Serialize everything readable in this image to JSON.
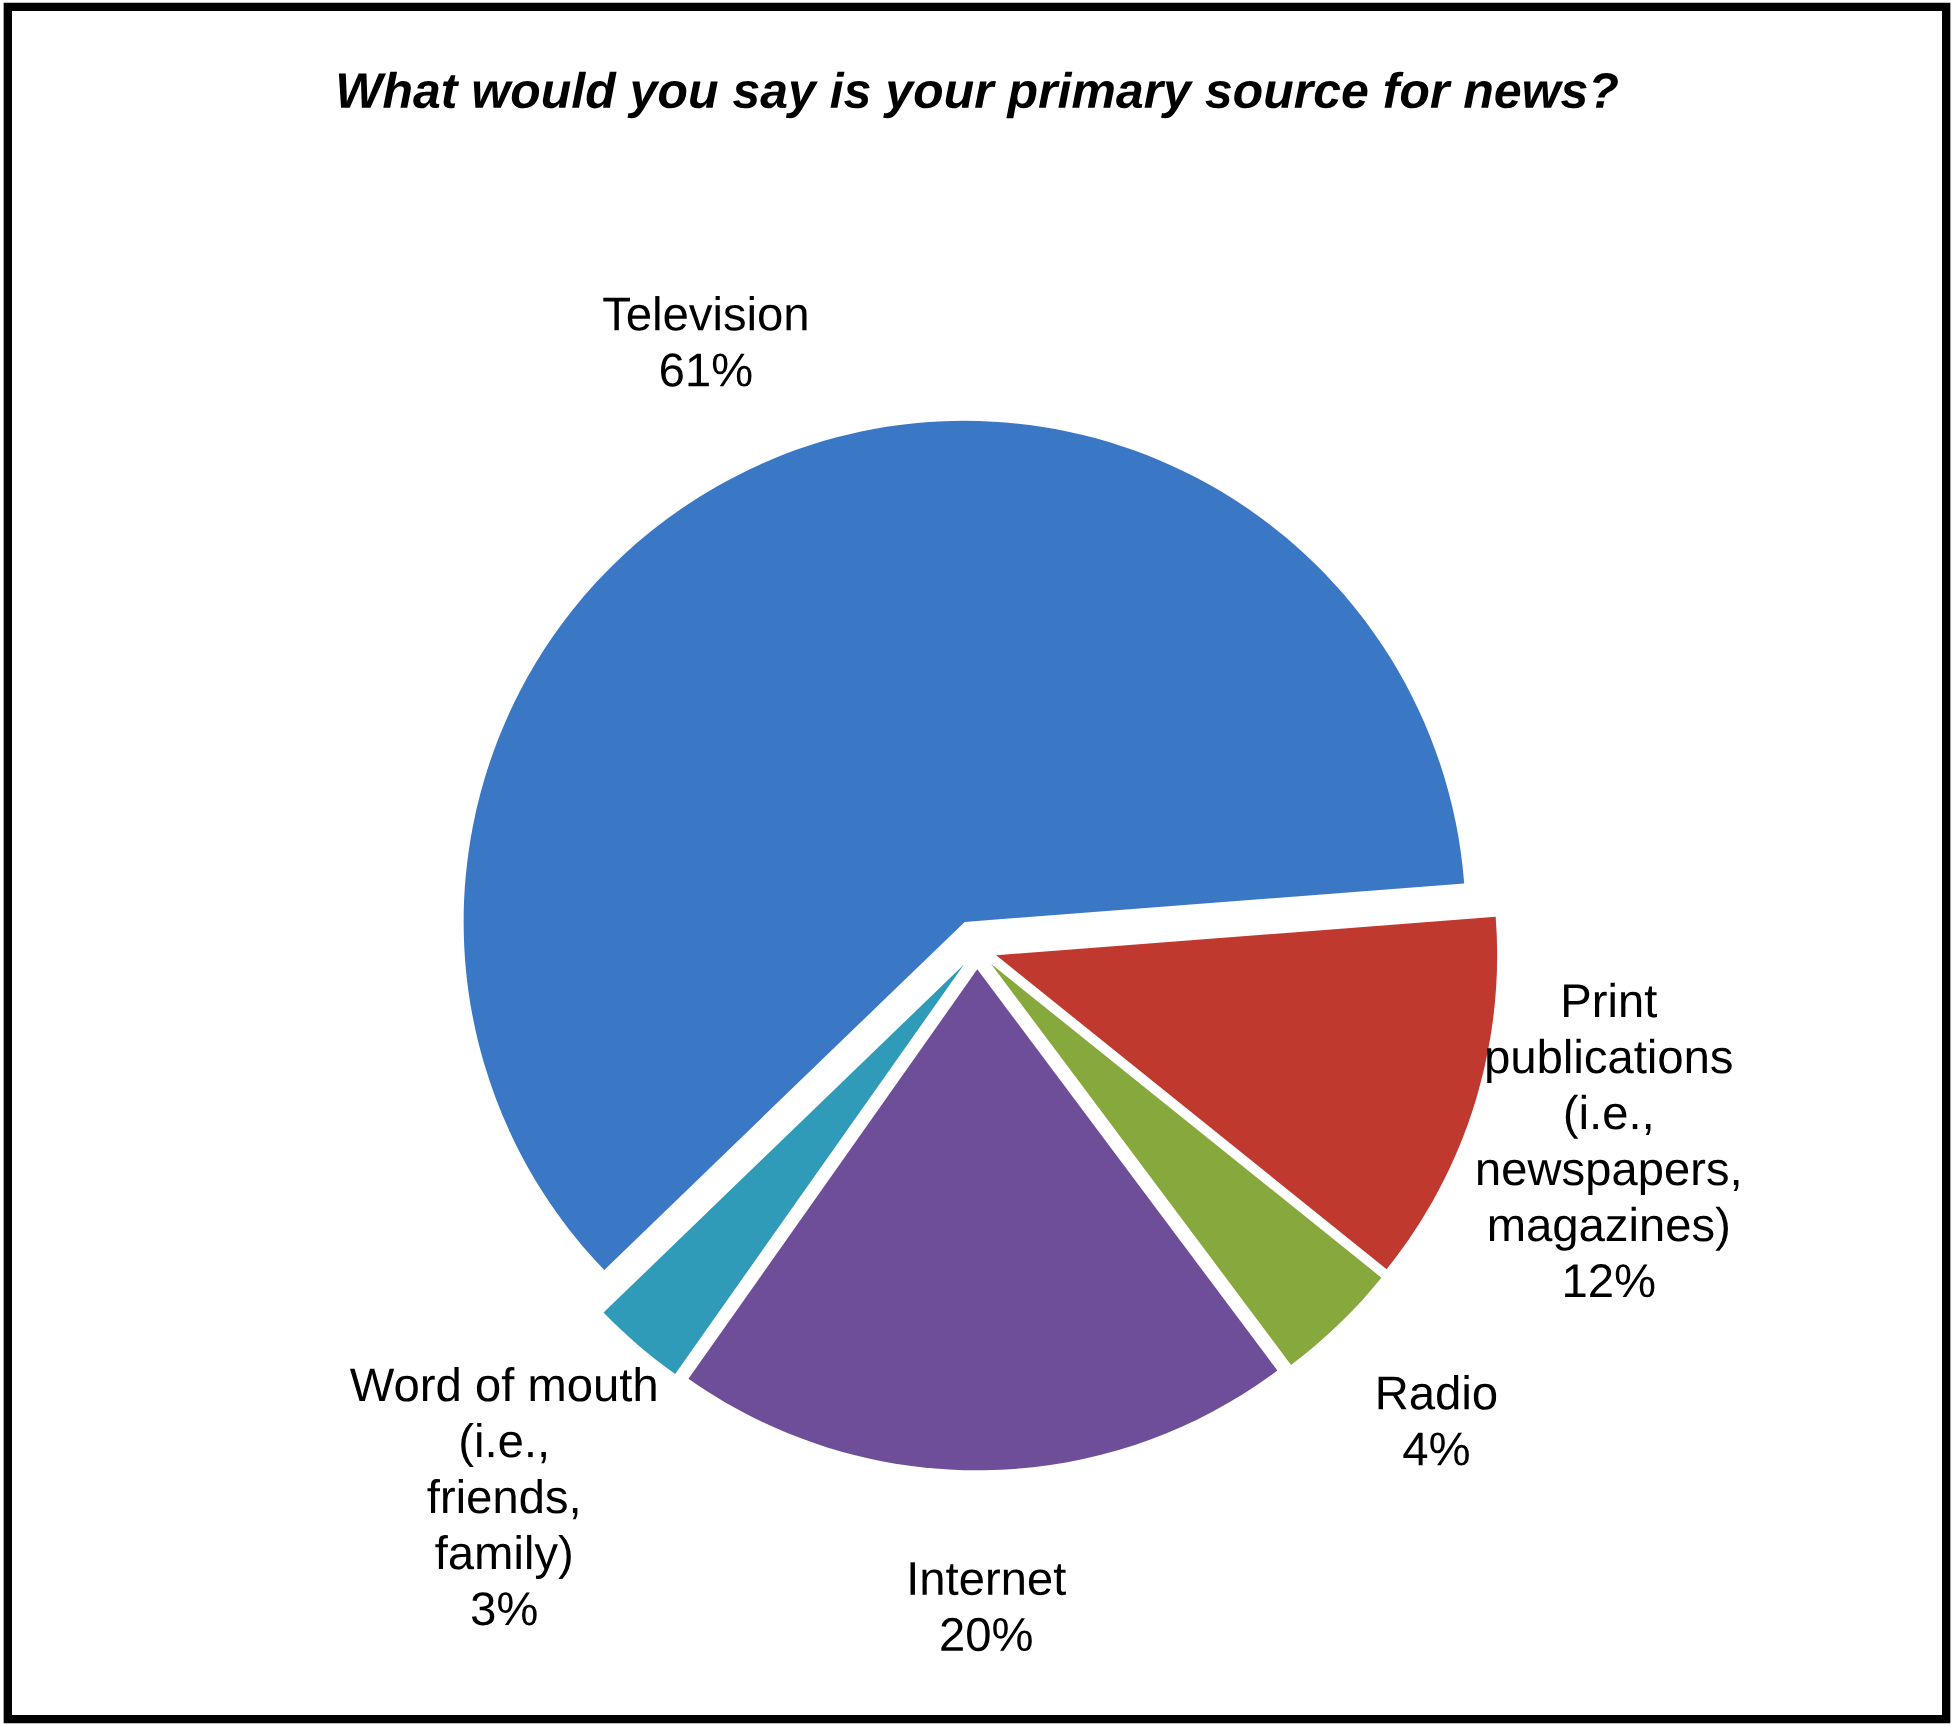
{
  "chart_data": {
    "type": "pie",
    "title": "What would you say is your primary source for news?",
    "categories": [
      "Television",
      "Print publications (i.e., newspapers, magazines)",
      "Radio",
      "Internet",
      "Word of mouth (i.e., friends, family)"
    ],
    "values": [
      61,
      12,
      4,
      20,
      3
    ],
    "colors": [
      "#3a78c6",
      "#c0392f",
      "#86a83c",
      "#6e4e98",
      "#2f9bb8"
    ],
    "value_labels": [
      "61%",
      "12%",
      "4%",
      "20%",
      "3%"
    ]
  }
}
